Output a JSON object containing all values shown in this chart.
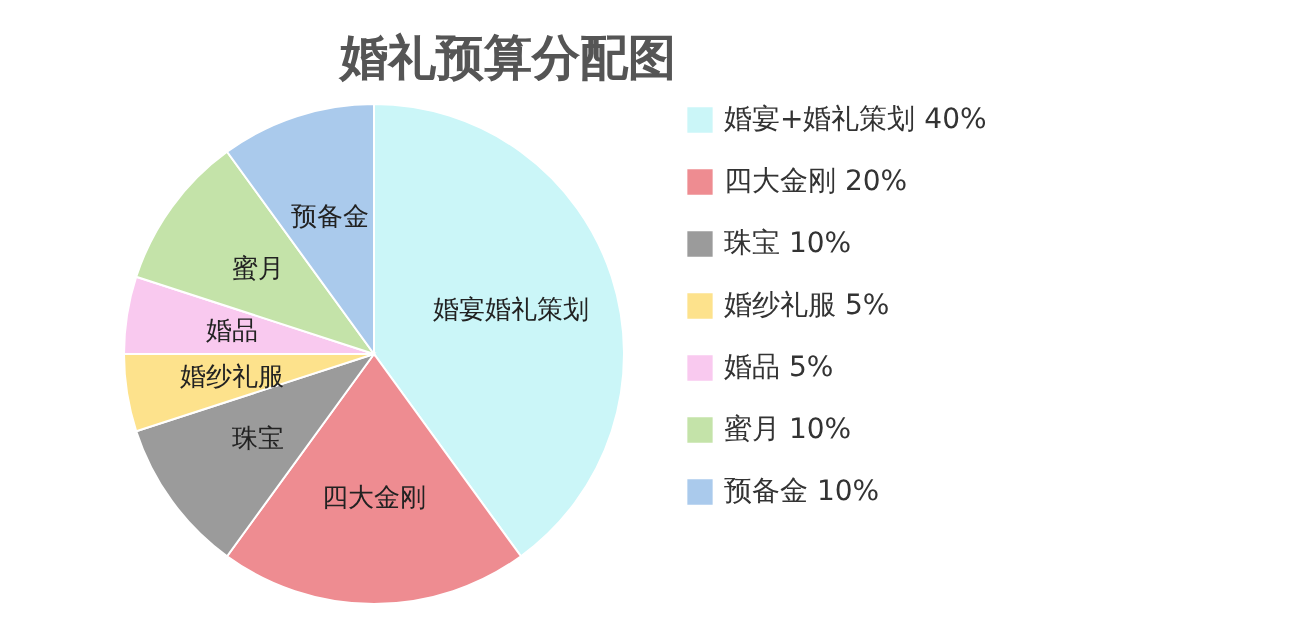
{
  "chart_data": {
    "type": "pie",
    "title": "婚礼预算分配图",
    "categories": [
      "婚宴+婚礼策划",
      "四大金刚",
      "珠宝",
      "婚纱礼服",
      "婚品",
      "蜜月",
      "预备金"
    ],
    "values": [
      40,
      20,
      10,
      5,
      5,
      10,
      10
    ],
    "value_labels": [
      "40%",
      "20%",
      "10%",
      "5%",
      "5%",
      "10%",
      "10%"
    ],
    "colors": [
      "#cbf6f8",
      "#ee8c91",
      "#9b9b9b",
      "#fde28c",
      "#f9c9ef",
      "#c4e3a9",
      "#aacaec"
    ],
    "annotations": [
      "婚宴婚礼策划",
      "四大金刚",
      "珠宝",
      "婚纱礼服",
      "婚品",
      "蜜月",
      "预备金"
    ],
    "legend": "right"
  }
}
